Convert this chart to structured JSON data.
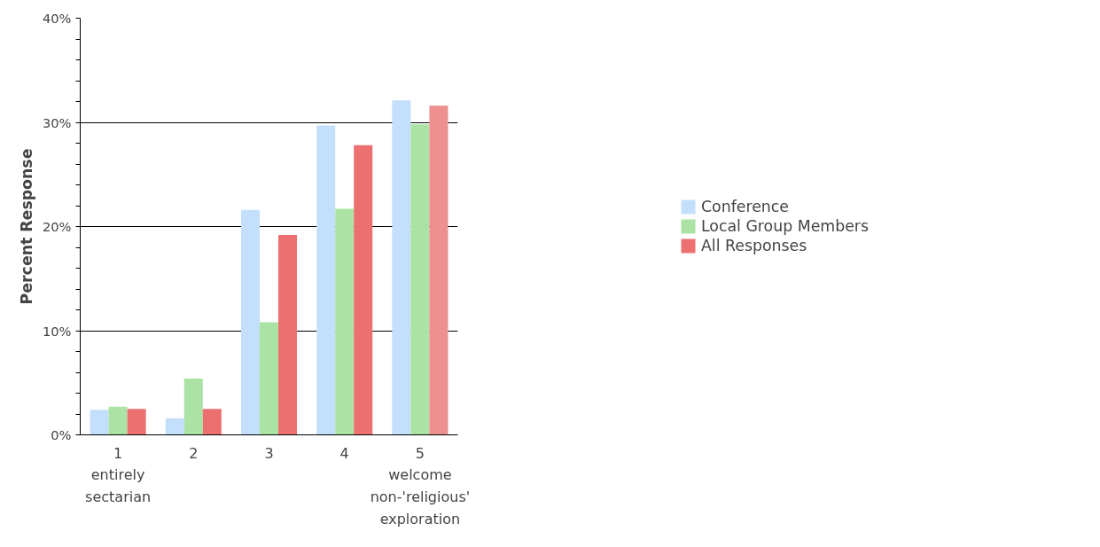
{
  "chart_data": {
    "type": "bar",
    "ylabel": "Percent Response",
    "categories": [
      "1\nentirely\nsectarian",
      "2",
      "3",
      "4",
      "5\nwelcome\nnon-'religious'\nexploration"
    ],
    "series": [
      {
        "name": "Conference",
        "color": "#c4dffb",
        "values": [
          2.4,
          1.6,
          21.6,
          29.7,
          32.1
        ]
      },
      {
        "name": "Local Group Members",
        "color": "#abe3a4",
        "values": [
          2.7,
          5.4,
          10.8,
          21.7,
          29.8
        ]
      },
      {
        "name": "All Responses",
        "color": "#ec7070",
        "colors": [
          "#ec7070",
          "#ec7070",
          "#ec7070",
          "#ec7070",
          "#ee9090"
        ],
        "values": [
          2.5,
          2.5,
          19.2,
          27.8,
          31.6
        ]
      }
    ],
    "ylim": [
      0,
      40
    ],
    "yticks": [
      {
        "value": 0,
        "label": "0%"
      },
      {
        "value": 2,
        "label": null
      },
      {
        "value": 4,
        "label": null
      },
      {
        "value": 6,
        "label": null
      },
      {
        "value": 8,
        "label": null
      },
      {
        "value": 10,
        "label": "10%"
      },
      {
        "value": 12,
        "label": null
      },
      {
        "value": 14,
        "label": null
      },
      {
        "value": 16,
        "label": null
      },
      {
        "value": 18,
        "label": null
      },
      {
        "value": 20,
        "label": "20%"
      },
      {
        "value": 22,
        "label": null
      },
      {
        "value": 24,
        "label": null
      },
      {
        "value": 26,
        "label": null
      },
      {
        "value": 28,
        "label": null
      },
      {
        "value": 30,
        "label": "30%"
      },
      {
        "value": 32,
        "label": null
      },
      {
        "value": 34,
        "label": null
      },
      {
        "value": 36,
        "label": null
      },
      {
        "value": 38,
        "label": null
      },
      {
        "value": 40,
        "label": "40%"
      }
    ],
    "grid": "y",
    "legend": "right"
  }
}
